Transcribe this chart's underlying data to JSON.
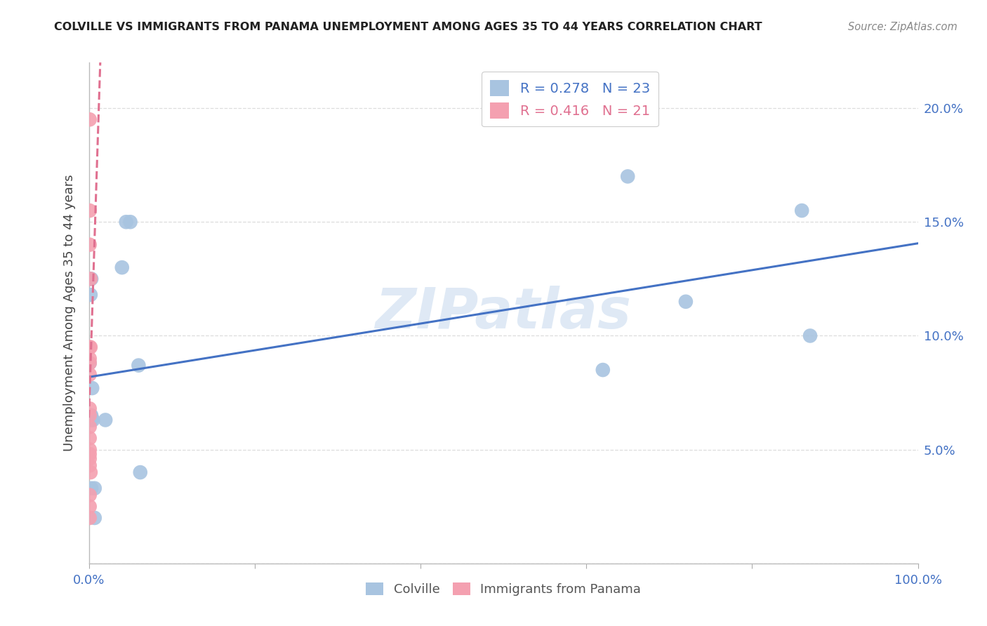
{
  "title": "COLVILLE VS IMMIGRANTS FROM PANAMA UNEMPLOYMENT AMONG AGES 35 TO 44 YEARS CORRELATION CHART",
  "source": "Source: ZipAtlas.com",
  "ylabel": "Unemployment Among Ages 35 to 44 years",
  "watermark": "ZIPatlas",
  "colville_points": [
    [
      0.001,
      0.088
    ],
    [
      0.001,
      0.125
    ],
    [
      0.002,
      0.118
    ],
    [
      0.002,
      0.065
    ],
    [
      0.003,
      0.125
    ],
    [
      0.003,
      0.063
    ],
    [
      0.003,
      0.065
    ],
    [
      0.003,
      0.033
    ],
    [
      0.004,
      0.077
    ],
    [
      0.005,
      0.063
    ],
    [
      0.007,
      0.033
    ],
    [
      0.007,
      0.02
    ],
    [
      0.02,
      0.063
    ],
    [
      0.04,
      0.13
    ],
    [
      0.045,
      0.15
    ],
    [
      0.05,
      0.15
    ],
    [
      0.06,
      0.087
    ],
    [
      0.062,
      0.04
    ],
    [
      0.62,
      0.085
    ],
    [
      0.65,
      0.17
    ],
    [
      0.72,
      0.115
    ],
    [
      0.86,
      0.155
    ],
    [
      0.87,
      0.1
    ]
  ],
  "panama_points": [
    [
      0.001,
      0.195
    ],
    [
      0.001,
      0.155
    ],
    [
      0.001,
      0.14
    ],
    [
      0.001,
      0.095
    ],
    [
      0.001,
      0.09
    ],
    [
      0.001,
      0.088
    ],
    [
      0.001,
      0.083
    ],
    [
      0.001,
      0.068
    ],
    [
      0.001,
      0.065
    ],
    [
      0.001,
      0.06
    ],
    [
      0.001,
      0.055
    ],
    [
      0.001,
      0.05
    ],
    [
      0.001,
      0.048
    ],
    [
      0.001,
      0.046
    ],
    [
      0.001,
      0.043
    ],
    [
      0.001,
      0.03
    ],
    [
      0.001,
      0.025
    ],
    [
      0.001,
      0.02
    ],
    [
      0.002,
      0.125
    ],
    [
      0.002,
      0.095
    ],
    [
      0.002,
      0.04
    ]
  ],
  "colville_color": "#a8c4e0",
  "panama_color": "#f4a0b0",
  "colville_line_color": "#4472c4",
  "panama_line_color": "#e07090",
  "colville_R": 0.278,
  "colville_N": 23,
  "panama_R": 0.416,
  "panama_N": 21,
  "xlim": [
    0.0,
    1.0
  ],
  "ylim": [
    0.0,
    0.22
  ],
  "yticks": [
    0.0,
    0.05,
    0.1,
    0.15,
    0.2
  ],
  "ytick_labels": [
    "",
    "5.0%",
    "10.0%",
    "15.0%",
    "20.0%"
  ],
  "xticks": [
    0.0,
    0.2,
    0.4,
    0.6,
    0.8,
    1.0
  ],
  "xtick_labels": [
    "0.0%",
    "",
    "",
    "",
    "",
    "100.0%"
  ],
  "background_color": "#ffffff",
  "grid_color": "#dddddd",
  "tick_color": "#4472c4"
}
